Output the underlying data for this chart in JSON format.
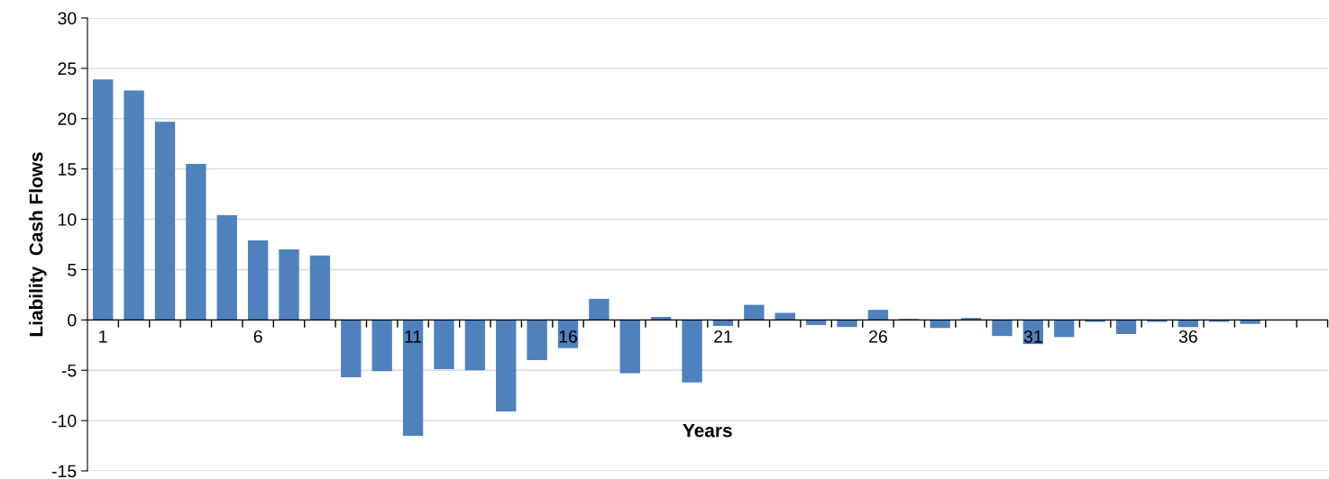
{
  "chart_data": {
    "type": "bar",
    "xlabel": "Years",
    "ylabel": "Liability  Cash Flows",
    "categories": [
      "1",
      null,
      null,
      null,
      null,
      "6",
      null,
      null,
      null,
      null,
      "11",
      null,
      null,
      null,
      null,
      "16",
      null,
      null,
      null,
      null,
      "21",
      null,
      null,
      null,
      null,
      "26",
      null,
      null,
      null,
      null,
      "31",
      null,
      null,
      null,
      null,
      "36",
      null,
      null,
      null,
      null
    ],
    "values": [
      23.9,
      22.8,
      19.7,
      15.5,
      10.4,
      7.9,
      7.0,
      6.4,
      -5.7,
      -5.1,
      -11.5,
      -4.9,
      -5.0,
      -9.1,
      -4.0,
      -2.8,
      2.1,
      -5.3,
      0.3,
      -6.2,
      -0.6,
      1.5,
      0.7,
      -0.5,
      -0.7,
      1.0,
      0.1,
      -0.8,
      0.2,
      -1.6,
      -2.4,
      -1.7,
      -0.2,
      -1.4,
      -0.2,
      -0.7,
      -0.2,
      -0.4,
      null,
      null
    ],
    "color": "#4f81bd",
    "ylim": [
      -15,
      30
    ],
    "yticks": [
      -15,
      -10,
      -5,
      0,
      5,
      10,
      15,
      20,
      25,
      30
    ],
    "grid": "y"
  }
}
